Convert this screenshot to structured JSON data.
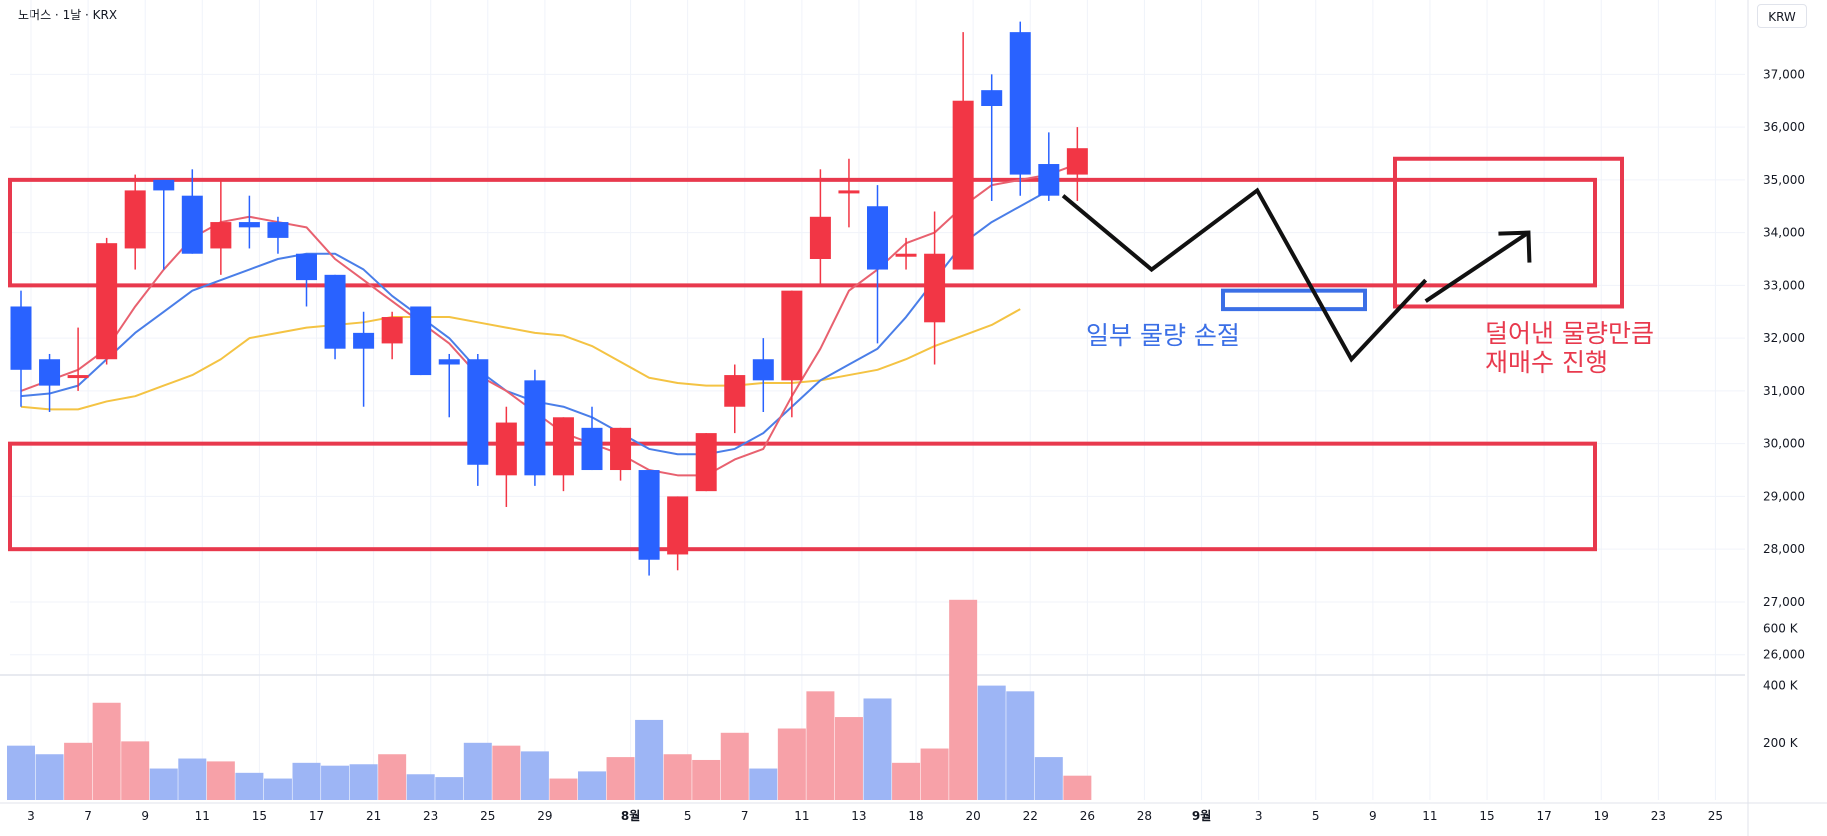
{
  "header": {
    "title": "노머스 · 1날 · KRX",
    "currency": "KRW"
  },
  "colors": {
    "up": "#f23645",
    "down": "#2962ff",
    "ma5": "#e8616f",
    "ma10": "#4a7ee8",
    "ma20": "#f4c343",
    "zone": "#e8394d",
    "blue_box": "#3b6fe6",
    "path": "#111111"
  },
  "annotations": {
    "blue_note": "일부 물량 손절",
    "red_note_line1": "덜어낸 물량만큼",
    "red_note_line2": "재매수 진행"
  },
  "chart_data": {
    "type": "candlestick",
    "y_axis": {
      "range": [
        25600,
        38200
      ],
      "ticks": [
        26000,
        27000,
        28000,
        29000,
        30000,
        31000,
        32000,
        33000,
        34000,
        35000,
        36000,
        37000
      ],
      "tick_labels": [
        "26,000",
        "27,000",
        "28,000",
        "29,000",
        "30,000",
        "31,000",
        "32,000",
        "33,000",
        "34,000",
        "35,000",
        "36,000",
        "37,000"
      ]
    },
    "x_axis": {
      "tick_labels": [
        "3",
        "7",
        "9",
        "11",
        "15",
        "17",
        "21",
        "23",
        "25",
        "29",
        "8월",
        "5",
        "7",
        "11",
        "13",
        "18",
        "20",
        "22",
        "26",
        "28",
        "9월",
        "3",
        "5",
        "9",
        "11",
        "15",
        "17",
        "19",
        "23",
        "25"
      ],
      "tick_slots": [
        1,
        3,
        5,
        7,
        9,
        11,
        13,
        15,
        17,
        19,
        22,
        24,
        26,
        28,
        30,
        32,
        34,
        36,
        38,
        40,
        42,
        44,
        46,
        48,
        50,
        52,
        54,
        56,
        58,
        60
      ]
    },
    "candles": [
      {
        "o": 32600,
        "h": 32900,
        "l": 30700,
        "c": 31400
      },
      {
        "o": 31600,
        "h": 31700,
        "l": 30600,
        "c": 31100
      },
      {
        "o": 31300,
        "h": 32200,
        "l": 31000,
        "c": 31300
      },
      {
        "o": 31600,
        "h": 33900,
        "l": 31500,
        "c": 33800
      },
      {
        "o": 33700,
        "h": 35100,
        "l": 33300,
        "c": 34800
      },
      {
        "o": 35000,
        "h": 35000,
        "l": 33300,
        "c": 34800
      },
      {
        "o": 34700,
        "h": 35200,
        "l": 33600,
        "c": 33600
      },
      {
        "o": 33700,
        "h": 35000,
        "l": 33200,
        "c": 34200
      },
      {
        "o": 34200,
        "h": 34700,
        "l": 33700,
        "c": 34100
      },
      {
        "o": 34200,
        "h": 34300,
        "l": 33600,
        "c": 33900
      },
      {
        "o": 33600,
        "h": 33600,
        "l": 32600,
        "c": 33100
      },
      {
        "o": 33200,
        "h": 33200,
        "l": 31600,
        "c": 31800
      },
      {
        "o": 32100,
        "h": 32500,
        "l": 30700,
        "c": 31800
      },
      {
        "o": 31900,
        "h": 32500,
        "l": 31600,
        "c": 32400
      },
      {
        "o": 32600,
        "h": 32600,
        "l": 31300,
        "c": 31300
      },
      {
        "o": 31600,
        "h": 31700,
        "l": 30500,
        "c": 31500
      },
      {
        "o": 31600,
        "h": 31700,
        "l": 29200,
        "c": 29600
      },
      {
        "o": 29400,
        "h": 30700,
        "l": 28800,
        "c": 30400
      },
      {
        "o": 31200,
        "h": 31400,
        "l": 29200,
        "c": 29400
      },
      {
        "o": 29400,
        "h": 30500,
        "l": 29100,
        "c": 30500
      },
      {
        "o": 30300,
        "h": 30700,
        "l": 29500,
        "c": 29500
      },
      {
        "o": 29500,
        "h": 30300,
        "l": 29300,
        "c": 30300
      },
      {
        "o": 29500,
        "h": 29500,
        "l": 27500,
        "c": 27800
      },
      {
        "o": 27900,
        "h": 29000,
        "l": 27600,
        "c": 29000
      },
      {
        "o": 29100,
        "h": 30200,
        "l": 29100,
        "c": 30200
      },
      {
        "o": 30700,
        "h": 31500,
        "l": 30200,
        "c": 31300
      },
      {
        "o": 31600,
        "h": 32000,
        "l": 30600,
        "c": 31200
      },
      {
        "o": 31200,
        "h": 32900,
        "l": 30500,
        "c": 32900
      },
      {
        "o": 33500,
        "h": 35200,
        "l": 33000,
        "c": 34300
      },
      {
        "o": 34800,
        "h": 35400,
        "l": 34100,
        "c": 34800
      },
      {
        "o": 34500,
        "h": 34900,
        "l": 31900,
        "c": 33300
      },
      {
        "o": 33600,
        "h": 33900,
        "l": 33300,
        "c": 33600
      },
      {
        "o": 32300,
        "h": 34400,
        "l": 31500,
        "c": 33600
      },
      {
        "o": 33300,
        "h": 37800,
        "l": 33300,
        "c": 36500
      },
      {
        "o": 36700,
        "h": 37000,
        "l": 34600,
        "c": 36400
      },
      {
        "o": 37800,
        "h": 38000,
        "l": 34700,
        "c": 35100
      },
      {
        "o": 35300,
        "h": 35900,
        "l": 34600,
        "c": 34700
      },
      {
        "o": 35100,
        "h": 36000,
        "l": 34600,
        "c": 35600
      }
    ],
    "ma5": [
      31000,
      31200,
      31400,
      31800,
      32600,
      33300,
      33900,
      34200,
      34300,
      34200,
      34100,
      33500,
      33100,
      32700,
      32300,
      31900,
      31300,
      31000,
      30600,
      30200,
      30000,
      29800,
      29500,
      29400,
      29400,
      29700,
      29900,
      30900,
      31800,
      32900,
      33300,
      33800,
      34000,
      34500,
      34900,
      35000,
      35100,
      35300
    ],
    "ma10": [
      30900,
      30950,
      31100,
      31600,
      32100,
      32500,
      32900,
      33100,
      33300,
      33500,
      33600,
      33600,
      33300,
      32800,
      32400,
      32000,
      31400,
      31000,
      30800,
      30700,
      30500,
      30200,
      29900,
      29800,
      29800,
      29900,
      30200,
      30700,
      31200,
      31500,
      31800,
      32400,
      33100,
      33800,
      34200,
      34500,
      34800
    ],
    "ma20": [
      30700,
      30650,
      30650,
      30800,
      30900,
      31100,
      31300,
      31600,
      32000,
      32100,
      32200,
      32250,
      32300,
      32400,
      32400,
      32400,
      32300,
      32200,
      32100,
      32050,
      31850,
      31550,
      31250,
      31150,
      31100,
      31100,
      31150,
      31150,
      31200,
      31300,
      31400,
      31600,
      31850,
      32050,
      32250,
      32550
    ],
    "volume": {
      "ticks": [
        200000,
        400000,
        600000
      ],
      "tick_labels": [
        "200 K",
        "400 K",
        "600 K"
      ],
      "range": [
        0,
        700000
      ],
      "values": [
        190000,
        160000,
        200000,
        340000,
        205000,
        110000,
        145000,
        135000,
        95000,
        75000,
        130000,
        120000,
        125000,
        160000,
        90000,
        80000,
        200000,
        190000,
        170000,
        75000,
        100000,
        150000,
        280000,
        160000,
        140000,
        235000,
        110000,
        250000,
        380000,
        290000,
        355000,
        130000,
        180000,
        700000,
        400000,
        380000,
        150000,
        85000
      ]
    },
    "zones": [
      {
        "top": 35000,
        "bottom": 33000
      },
      {
        "top": 30000,
        "bottom": 28000
      },
      {
        "top": 35400,
        "bottom": 32600
      },
      {
        "top": 32900,
        "bottom": 32550
      }
    ]
  }
}
